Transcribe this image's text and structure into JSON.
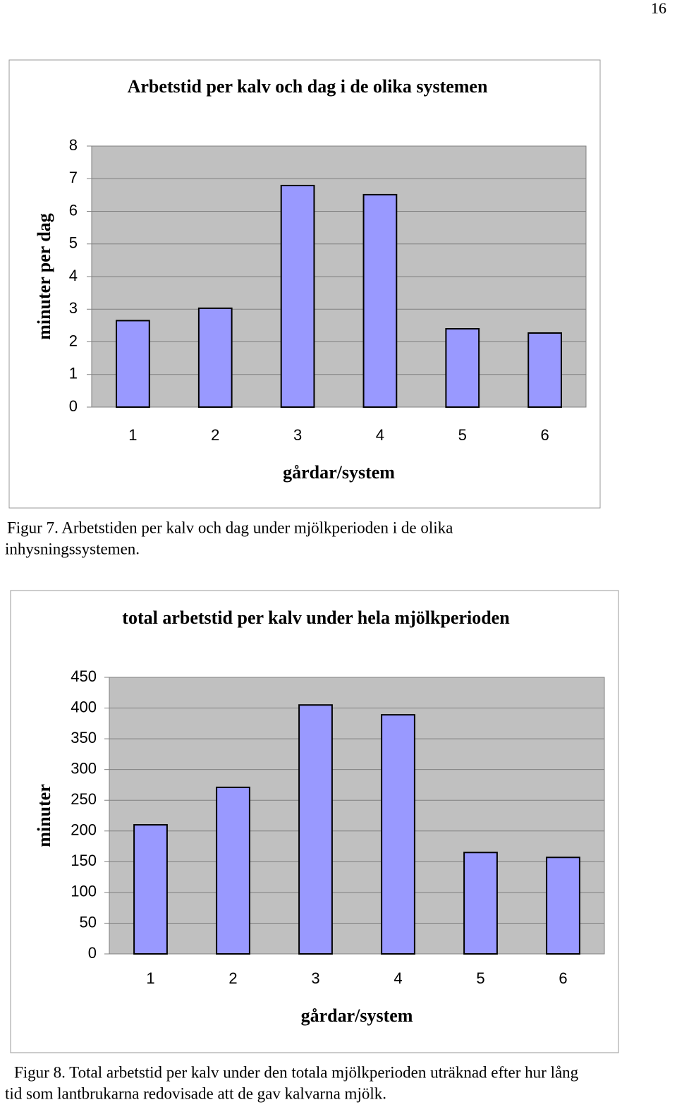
{
  "page_number": "16",
  "chart_data": [
    {
      "type": "bar",
      "title": "Arbetstid per kalv och dag i de olika systemen",
      "x_label": "gårdar/system",
      "y_label": "minuter per dag",
      "categories": [
        "1",
        "2",
        "3",
        "4",
        "5",
        "6"
      ],
      "values": [
        2.65,
        3.03,
        6.79,
        6.51,
        2.4,
        2.27
      ],
      "color": "#9999ff",
      "ylim": [
        0,
        8
      ],
      "yticks": [
        0,
        1,
        2,
        3,
        4,
        5,
        6,
        7,
        8
      ],
      "grid": true
    },
    {
      "type": "bar",
      "title": "total arbetstid per kalv under hela mjölkperioden",
      "x_label": "gårdar/system",
      "y_label": "minuter",
      "categories": [
        "1",
        "2",
        "3",
        "4",
        "5",
        "6"
      ],
      "values": [
        210,
        271,
        405,
        389,
        165,
        157
      ],
      "color": "#9999ff",
      "ylim": [
        0,
        450
      ],
      "yticks": [
        0,
        50,
        100,
        150,
        200,
        250,
        300,
        350,
        400,
        450
      ],
      "grid": true
    }
  ],
  "captions": [
    [
      "Figur 7. Arbetstiden per kalv och dag under mjölkperioden i de olika",
      "inhysningssystemen."
    ],
    [
      "Figur 8. Total arbetstid per kalv under den totala mjölkperioden uträknad efter hur lång",
      "tid som lantbrukarna redovisade att de gav kalvarna mjölk."
    ]
  ]
}
